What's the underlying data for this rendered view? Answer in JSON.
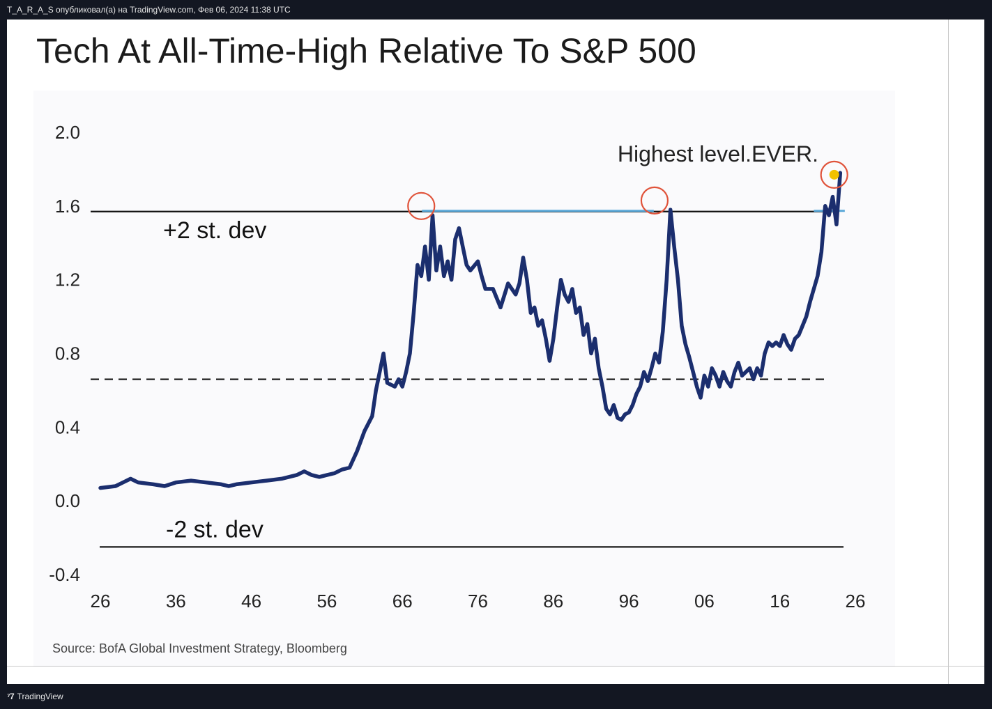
{
  "header": {
    "publish_info": "T_A_R_A_S опубликовал(а) на TradingView.com, Фев 06, 2024 11:38 UTC"
  },
  "footer": {
    "brand_label": "TradingView",
    "brand_icon": "tradingview-logo-icon"
  },
  "chart_data": {
    "type": "line",
    "title": "Tech At All-Time-High Relative To S&P 500",
    "source": "Source: BofA Global Investment Strategy, Bloomberg",
    "xlabel": "",
    "ylabel": "",
    "y_ticks": [
      "2.0",
      "1.6",
      "1.2",
      "0.8",
      "0.4",
      "0.0",
      "-0.4"
    ],
    "y_tick_values": [
      2.0,
      1.6,
      1.2,
      0.8,
      0.4,
      0.0,
      -0.4
    ],
    "x_ticks": [
      "26",
      "36",
      "46",
      "56",
      "66",
      "76",
      "86",
      "96",
      "06",
      "16",
      "26"
    ],
    "x_tick_values": [
      1926,
      1936,
      1946,
      1956,
      1966,
      1976,
      1986,
      1996,
      2006,
      2016,
      2026
    ],
    "ylim": [
      -0.4,
      2.0
    ],
    "xlim": [
      1926,
      2026
    ],
    "grid": false,
    "colors": {
      "line": "#1b2e6e",
      "circle": "#e0533a",
      "highlight": "#f2c200",
      "band": "#5aa8d8"
    },
    "reference_lines": [
      {
        "label": "+2 st. dev",
        "value": 1.57,
        "style": "solid"
      },
      {
        "label": "",
        "value": 0.66,
        "style": "dashed"
      },
      {
        "label": "-2 st. dev",
        "value": -0.25,
        "style": "solid"
      }
    ],
    "annotations": [
      {
        "text": "Highest level.EVER.",
        "x": 2020,
        "y": 1.77
      }
    ],
    "highlight_circles": [
      {
        "x": 1968.5,
        "y": 1.6
      },
      {
        "x": 1999.4,
        "y": 1.63
      },
      {
        "x": 2023.2,
        "y": 1.77
      }
    ],
    "series": [
      {
        "values": [
          [
            1926.0,
            0.07
          ],
          [
            1928.0,
            0.08
          ],
          [
            1929.0,
            0.1
          ],
          [
            1930.0,
            0.12
          ],
          [
            1931.0,
            0.1
          ],
          [
            1933.0,
            0.09
          ],
          [
            1934.5,
            0.08
          ],
          [
            1936.0,
            0.1
          ],
          [
            1938.0,
            0.11
          ],
          [
            1940.0,
            0.1
          ],
          [
            1942.0,
            0.09
          ],
          [
            1943.0,
            0.08
          ],
          [
            1944.0,
            0.09
          ],
          [
            1946.0,
            0.1
          ],
          [
            1948.0,
            0.11
          ],
          [
            1950.0,
            0.12
          ],
          [
            1952.0,
            0.14
          ],
          [
            1953.0,
            0.16
          ],
          [
            1954.0,
            0.14
          ],
          [
            1955.0,
            0.13
          ],
          [
            1956.0,
            0.14
          ],
          [
            1957.0,
            0.15
          ],
          [
            1958.0,
            0.17
          ],
          [
            1959.0,
            0.18
          ],
          [
            1960.0,
            0.27
          ],
          [
            1961.0,
            0.38
          ],
          [
            1962.0,
            0.46
          ],
          [
            1962.5,
            0.6
          ],
          [
            1963.0,
            0.7
          ],
          [
            1963.5,
            0.8
          ],
          [
            1964.0,
            0.64
          ],
          [
            1965.0,
            0.62
          ],
          [
            1965.5,
            0.66
          ],
          [
            1966.0,
            0.62
          ],
          [
            1966.5,
            0.7
          ],
          [
            1967.0,
            0.8
          ],
          [
            1967.5,
            1.02
          ],
          [
            1968.0,
            1.28
          ],
          [
            1968.5,
            1.22
          ],
          [
            1969.0,
            1.38
          ],
          [
            1969.5,
            1.2
          ],
          [
            1970.0,
            1.55
          ],
          [
            1970.5,
            1.25
          ],
          [
            1971.0,
            1.38
          ],
          [
            1971.5,
            1.22
          ],
          [
            1972.0,
            1.3
          ],
          [
            1972.5,
            1.2
          ],
          [
            1973.0,
            1.42
          ],
          [
            1973.5,
            1.48
          ],
          [
            1974.0,
            1.38
          ],
          [
            1974.5,
            1.28
          ],
          [
            1975.0,
            1.25
          ],
          [
            1976.0,
            1.3
          ],
          [
            1976.5,
            1.22
          ],
          [
            1977.0,
            1.15
          ],
          [
            1978.0,
            1.15
          ],
          [
            1979.0,
            1.05
          ],
          [
            1980.0,
            1.18
          ],
          [
            1981.0,
            1.12
          ],
          [
            1981.5,
            1.18
          ],
          [
            1982.0,
            1.32
          ],
          [
            1982.5,
            1.2
          ],
          [
            1983.0,
            1.02
          ],
          [
            1983.5,
            1.05
          ],
          [
            1984.0,
            0.95
          ],
          [
            1984.5,
            0.98
          ],
          [
            1985.0,
            0.88
          ],
          [
            1985.5,
            0.76
          ],
          [
            1986.0,
            0.88
          ],
          [
            1986.5,
            1.05
          ],
          [
            1987.0,
            1.2
          ],
          [
            1987.5,
            1.12
          ],
          [
            1988.0,
            1.08
          ],
          [
            1988.5,
            1.15
          ],
          [
            1989.0,
            1.02
          ],
          [
            1989.5,
            1.05
          ],
          [
            1990.0,
            0.9
          ],
          [
            1990.5,
            0.96
          ],
          [
            1991.0,
            0.8
          ],
          [
            1991.5,
            0.88
          ],
          [
            1992.0,
            0.72
          ],
          [
            1992.5,
            0.62
          ],
          [
            1993.0,
            0.5
          ],
          [
            1993.5,
            0.47
          ],
          [
            1994.0,
            0.52
          ],
          [
            1994.5,
            0.45
          ],
          [
            1995.0,
            0.44
          ],
          [
            1995.5,
            0.47
          ],
          [
            1996.0,
            0.48
          ],
          [
            1996.5,
            0.52
          ],
          [
            1997.0,
            0.58
          ],
          [
            1997.5,
            0.62
          ],
          [
            1998.0,
            0.7
          ],
          [
            1998.5,
            0.65
          ],
          [
            1999.0,
            0.72
          ],
          [
            1999.5,
            0.8
          ],
          [
            2000.0,
            0.75
          ],
          [
            2000.5,
            0.92
          ],
          [
            2001.0,
            1.2
          ],
          [
            2001.5,
            1.58
          ],
          [
            2002.0,
            1.38
          ],
          [
            2002.5,
            1.2
          ],
          [
            2003.0,
            0.95
          ],
          [
            2003.5,
            0.85
          ],
          [
            2004.0,
            0.78
          ],
          [
            2004.5,
            0.7
          ],
          [
            2005.0,
            0.62
          ],
          [
            2005.5,
            0.56
          ],
          [
            2006.0,
            0.68
          ],
          [
            2006.5,
            0.62
          ],
          [
            2007.0,
            0.72
          ],
          [
            2007.5,
            0.68
          ],
          [
            2008.0,
            0.62
          ],
          [
            2008.5,
            0.7
          ],
          [
            2009.0,
            0.65
          ],
          [
            2009.5,
            0.62
          ],
          [
            2010.0,
            0.7
          ],
          [
            2010.5,
            0.75
          ],
          [
            2011.0,
            0.68
          ],
          [
            2011.5,
            0.7
          ],
          [
            2012.0,
            0.72
          ],
          [
            2012.5,
            0.66
          ],
          [
            2013.0,
            0.72
          ],
          [
            2013.5,
            0.68
          ],
          [
            2014.0,
            0.8
          ],
          [
            2014.5,
            0.86
          ],
          [
            2015.0,
            0.84
          ],
          [
            2015.5,
            0.86
          ],
          [
            2016.0,
            0.84
          ],
          [
            2016.5,
            0.9
          ],
          [
            2017.0,
            0.85
          ],
          [
            2017.5,
            0.82
          ],
          [
            2018.0,
            0.88
          ],
          [
            2018.5,
            0.9
          ],
          [
            2019.0,
            0.95
          ],
          [
            2019.5,
            1.0
          ],
          [
            2020.0,
            1.08
          ],
          [
            2020.5,
            1.15
          ],
          [
            2021.0,
            1.22
          ],
          [
            2021.5,
            1.35
          ],
          [
            2022.0,
            1.6
          ],
          [
            2022.5,
            1.55
          ],
          [
            2023.0,
            1.65
          ],
          [
            2023.5,
            1.5
          ],
          [
            2024.0,
            1.78
          ]
        ]
      }
    ]
  }
}
